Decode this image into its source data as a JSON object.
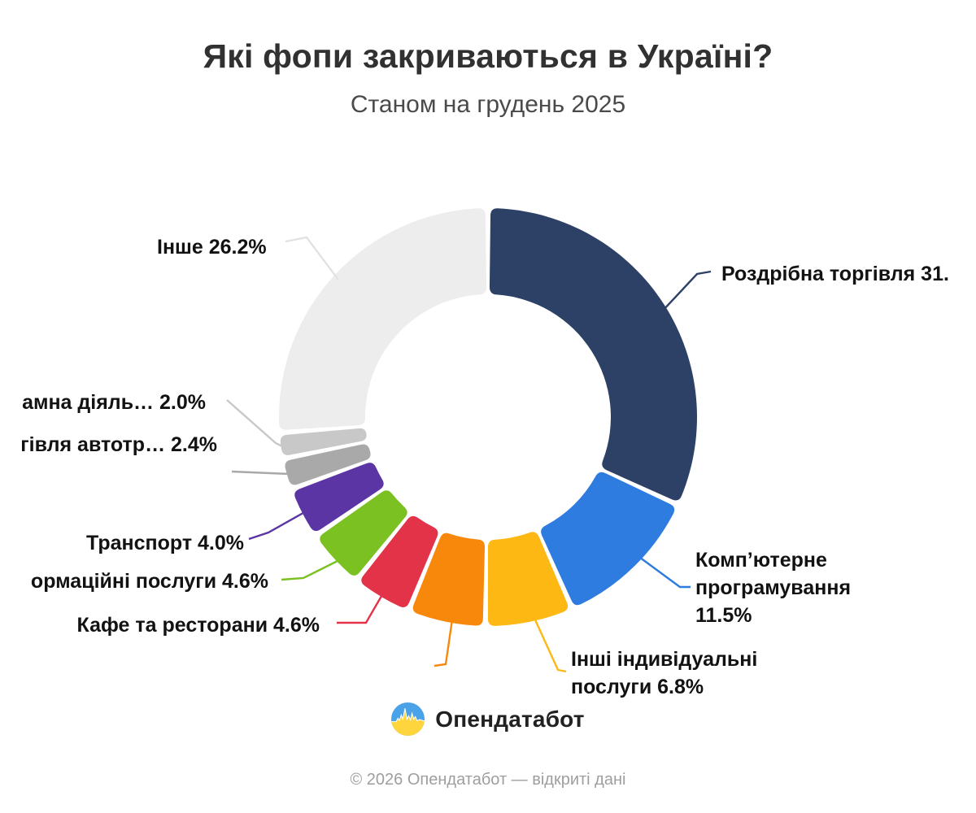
{
  "title": "Які фопи закриваються в Україні?",
  "subtitle": "Станом на грудень 2025",
  "logo": {
    "text": "Опендатабот",
    "icon": "opendatabot-pulse-circle",
    "icon_colors": {
      "top_blue": "#4aa2e9",
      "bottom_yellow": "#ffd53e"
    }
  },
  "footer": "© 2026 Опендатабот — відкриті дані",
  "chart_data": {
    "type": "pie",
    "variant": "donut",
    "unit": "%",
    "start_angle_deg_from_top": 0,
    "direction": "clockwise",
    "inner_radius_ratio": 0.59,
    "grid": false,
    "legend": "none (direct leader-line labels)",
    "segments": [
      {
        "name": "Роздрібна торгівля",
        "value": 31.9,
        "label_visible": "Роздрібна торгівля 31.",
        "color": "#2d4166"
      },
      {
        "name": "Комп’ютерне програмування",
        "value": 11.5,
        "label_visible": "Комп’ютерне\nпрограмування\n11.5%",
        "color": "#2e7ce0"
      },
      {
        "name": "Інші індивідуальні послуги",
        "value": 6.8,
        "label_visible": "Інші індивідуальні\nпослуги 6.8%",
        "color": "#fdb813"
      },
      {
        "name": "",
        "value": 6.0,
        "label_visible": "",
        "color": "#f8880b"
      },
      {
        "name": "Кафе та ресторани",
        "value": 4.6,
        "label_visible": "Кафе та ресторани 4.6%",
        "color": "#e23349"
      },
      {
        "name": "ормаційні послуги",
        "value": 4.6,
        "label_visible": "ормаційні послуги 4.6%",
        "color": "#7ac121"
      },
      {
        "name": "Транспорт",
        "value": 4.0,
        "label_visible": "Транспорт 4.0%",
        "color": "#5c35a5"
      },
      {
        "name": "гівля автотр…",
        "value": 2.4,
        "label_visible": "гівля автотр… 2.4%",
        "color": "#a9a9a9"
      },
      {
        "name": "амна діяль…",
        "value": 2.0,
        "label_visible": "амна діяль… 2.0%",
        "color": "#c8c8c8"
      },
      {
        "name": "Інше",
        "value": 26.2,
        "label_visible": "Інше 26.2%",
        "color": "#ededed"
      }
    ]
  }
}
